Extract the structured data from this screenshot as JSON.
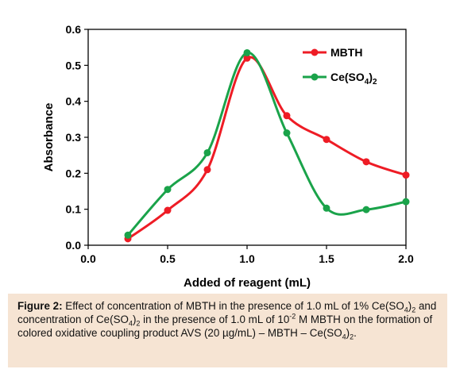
{
  "chart_data": {
    "type": "line",
    "xlabel": "Added of reagent (mL)",
    "ylabel": "Absorbance",
    "xlim": [
      0,
      2
    ],
    "ylim": [
      0,
      0.6
    ],
    "x_ticks": [
      "0.0",
      "0.5",
      "1.0",
      "1.5",
      "2.0"
    ],
    "y_ticks": [
      "0.0",
      "0.1",
      "0.2",
      "0.3",
      "0.4",
      "0.5",
      "0.6"
    ],
    "grid": false,
    "legend_position": "top-right",
    "series": [
      {
        "name": "MBTH",
        "color": "#ee1c25",
        "x": [
          0.25,
          0.5,
          0.75,
          1.0,
          1.25,
          1.5,
          1.75,
          2.0
        ],
        "y": [
          0.018,
          0.097,
          0.21,
          0.52,
          0.36,
          0.294,
          0.232,
          0.195
        ]
      },
      {
        "name": "Ce(SO4)2",
        "color": "#1aa34a",
        "x": [
          0.25,
          0.5,
          0.75,
          1.0,
          1.25,
          1.5,
          1.75,
          2.0
        ],
        "y": [
          0.028,
          0.155,
          0.257,
          0.535,
          0.312,
          0.103,
          0.099,
          0.121
        ]
      }
    ]
  },
  "legend": {
    "mbth": "MBTH",
    "ce_main": "Ce(SO",
    "ce_sub1": "4",
    "ce_close": ")",
    "ce_sub2": "2"
  },
  "caption": {
    "label": "Figure 2:",
    "p1": " Effect of concentration of MBTH in the presence of 1.0 mL of 1% Ce(SO",
    "p1_sub1": "4",
    "p1_close": ")",
    "p1_sub2": "2",
    "p2": " and concentration of Ce(SO",
    "p2_sub1": "4",
    "p2_close": ")",
    "p2_sub2": "2",
    "p3": " in the presence of 1.0 mL of 10",
    "p3_sup": "-2",
    "p4": " M MBTH on the formation of colored oxidative coupling product AVS (20 µg/mL) – MBTH – Ce(SO",
    "p4_sub1": "4",
    "p4_close": ")",
    "p4_sub2": "2",
    "p4_end": "."
  }
}
